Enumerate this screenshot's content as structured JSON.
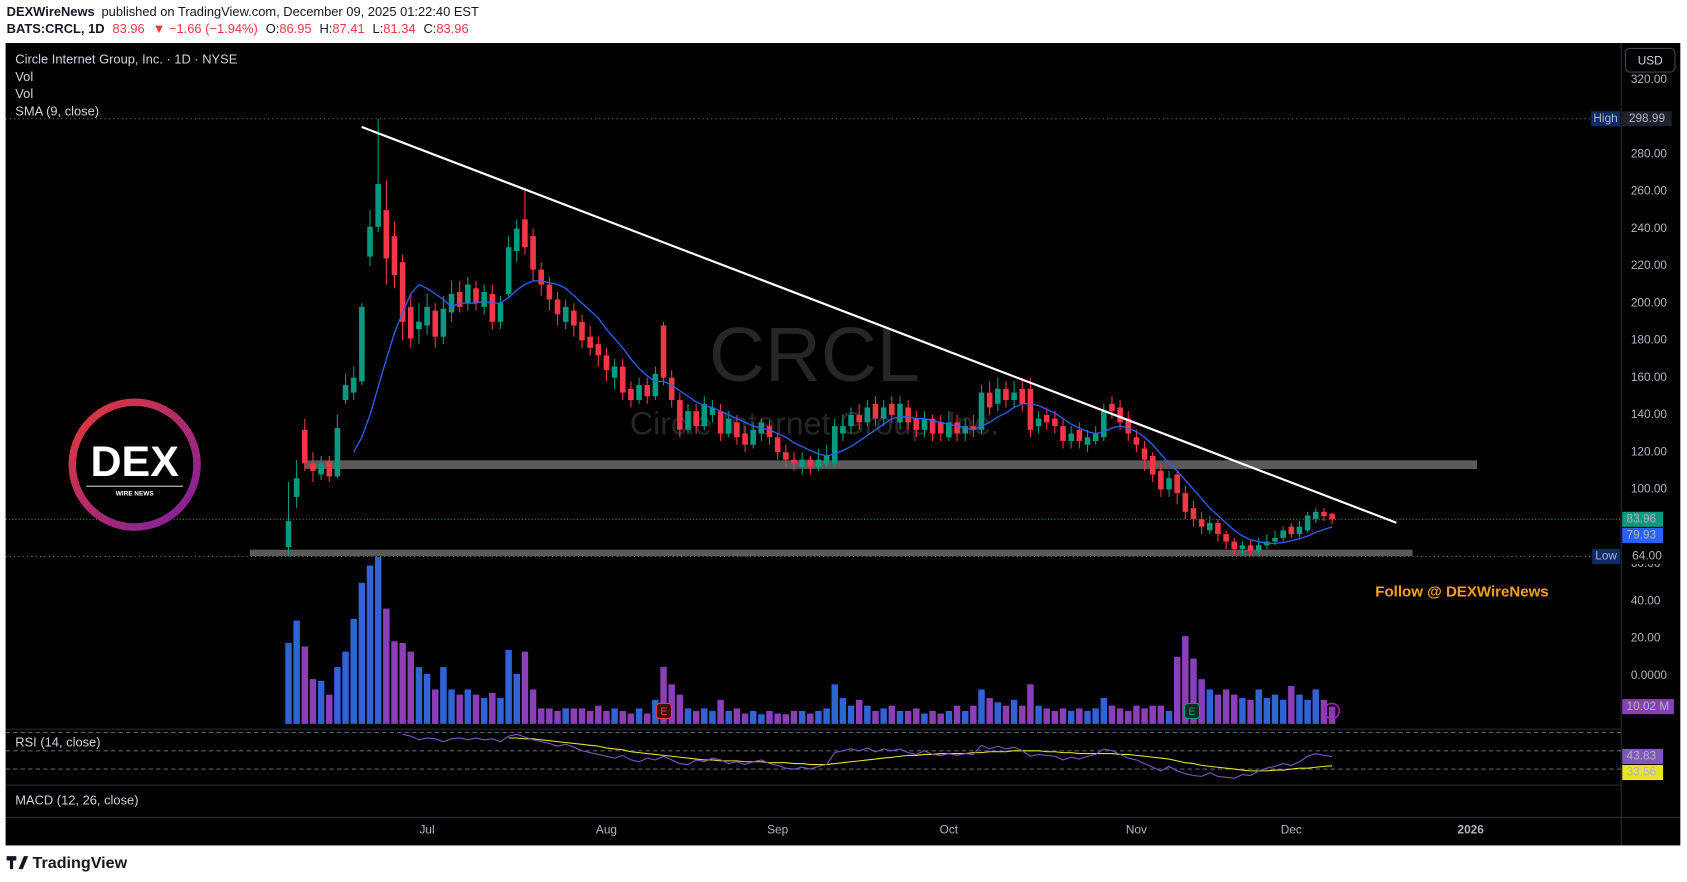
{
  "header": {
    "publisher": "DEXWireNews",
    "published": "published on TradingView.com, December 09, 2025 01:22:40 EST",
    "symbol": "BATS:CRCL, 1D",
    "change": "▼ −1.66 (−1.94%)",
    "o_label": "O:",
    "h_label": "H:",
    "l_label": "L:",
    "c_label": "C:"
  },
  "logo": {
    "text": "DEX",
    "subtext": "WIRE NEWS"
  },
  "annotation": "Follow @ DEXWireNews",
  "footer": "TradingView",
  "chart_data": {
    "type": "candlestick",
    "title": "Circle Internet Group, Inc. · 1D · NYSE",
    "volume_name": "Vol",
    "volume_name_2": "Vol",
    "sma_name": "SMA (9, close)",
    "rsi_name": "RSI (14, close)",
    "macd_name": "MACD (12, 26, close)",
    "watermark_symbol": "CRCL",
    "watermark_name": "Circle Internet Group, Inc.",
    "currency": "USD",
    "earnings_marker": "E",
    "categories": [
      null,
      null,
      null,
      null,
      null,
      null,
      null,
      null,
      null,
      null,
      null,
      null,
      null,
      null,
      null,
      null,
      null,
      "Jul",
      null,
      null,
      null,
      null,
      null,
      null,
      null,
      null,
      null,
      null,
      null,
      null,
      null,
      null,
      null,
      null,
      null,
      null,
      null,
      null,
      null,
      "Aug",
      null,
      null,
      null,
      null,
      null,
      null,
      null,
      null,
      null,
      null,
      null,
      null,
      null,
      null,
      null,
      null,
      null,
      null,
      null,
      null,
      "Sep",
      null,
      null,
      null,
      null,
      null,
      null,
      null,
      null,
      null,
      null,
      null,
      null,
      null,
      null,
      null,
      null,
      null,
      null,
      null,
      null,
      "Oct",
      null,
      null,
      null,
      null,
      null,
      null,
      null,
      null,
      null,
      null,
      null,
      null,
      null,
      null,
      null,
      null,
      null,
      null,
      null,
      null,
      null,
      null,
      "Nov",
      null,
      null,
      null,
      null,
      null,
      null,
      null,
      null,
      null,
      null,
      null,
      null,
      null,
      null,
      null,
      null,
      null,
      null,
      "Dec",
      null,
      null,
      null,
      null,
      null,
      null,
      null,
      null,
      null,
      null,
      null,
      null,
      null,
      null,
      null,
      null,
      null,
      null,
      null,
      null,
      null,
      "2026",
      null
    ],
    "ohlc": [
      [
        69,
        104,
        64,
        83
      ],
      [
        96,
        116,
        90,
        106
      ],
      [
        132,
        138,
        110,
        114
      ],
      [
        114,
        120,
        104,
        110
      ],
      [
        108,
        118,
        105,
        114
      ],
      [
        115,
        118,
        104,
        107
      ],
      [
        107,
        140,
        106,
        133
      ],
      [
        148,
        162,
        146,
        156
      ],
      [
        152,
        166,
        148,
        160
      ],
      [
        158,
        200,
        156,
        198
      ],
      [
        225,
        250,
        220,
        241
      ],
      [
        241,
        298.99,
        238,
        264
      ],
      [
        250,
        266,
        210,
        224
      ],
      [
        236,
        244,
        208,
        215
      ],
      [
        222,
        226,
        180,
        190
      ],
      [
        198,
        205,
        176,
        181
      ],
      [
        186,
        200,
        178,
        190
      ],
      [
        188,
        205,
        183,
        198
      ],
      [
        196,
        200,
        176,
        182
      ],
      [
        182,
        204,
        178,
        197
      ],
      [
        195,
        212,
        190,
        205
      ],
      [
        206,
        212,
        195,
        198
      ],
      [
        200,
        214,
        196,
        210
      ],
      [
        208,
        212,
        196,
        200
      ],
      [
        198,
        210,
        194,
        206
      ],
      [
        205,
        210,
        186,
        190
      ],
      [
        190,
        204,
        186,
        200
      ],
      [
        205,
        236,
        203,
        230
      ],
      [
        228,
        245,
        222,
        240
      ],
      [
        245,
        262,
        226,
        230
      ],
      [
        236,
        240,
        212,
        218
      ],
      [
        218,
        222,
        204,
        210
      ],
      [
        210,
        214,
        196,
        202
      ],
      [
        202,
        206,
        188,
        194
      ],
      [
        190,
        202,
        186,
        198
      ],
      [
        196,
        200,
        182,
        188
      ],
      [
        190,
        194,
        176,
        180
      ],
      [
        182,
        188,
        172,
        176
      ],
      [
        178,
        182,
        166,
        172
      ],
      [
        172,
        176,
        158,
        164
      ],
      [
        160,
        170,
        154,
        166
      ],
      [
        166,
        170,
        148,
        152
      ],
      [
        154,
        158,
        144,
        148
      ],
      [
        148,
        160,
        146,
        156
      ],
      [
        156,
        160,
        146,
        150
      ],
      [
        150,
        166,
        148,
        162
      ],
      [
        188,
        190,
        156,
        160
      ],
      [
        160,
        164,
        144,
        148
      ],
      [
        148,
        152,
        128,
        132
      ],
      [
        132,
        146,
        130,
        142
      ],
      [
        142,
        146,
        130,
        134
      ],
      [
        134,
        150,
        132,
        146
      ],
      [
        140,
        148,
        136,
        144
      ],
      [
        142,
        146,
        126,
        130
      ],
      [
        130,
        142,
        128,
        138
      ],
      [
        136,
        140,
        124,
        128
      ],
      [
        130,
        134,
        120,
        124
      ],
      [
        124,
        136,
        122,
        132
      ],
      [
        130,
        138,
        126,
        136
      ],
      [
        134,
        137,
        124,
        128
      ],
      [
        128,
        130,
        116,
        120
      ],
      [
        120,
        124,
        112,
        116
      ],
      [
        116,
        120,
        110,
        114
      ],
      [
        112,
        120,
        108,
        116
      ],
      [
        116,
        118,
        108,
        112
      ],
      [
        112,
        122,
        110,
        116
      ],
      [
        114,
        124,
        112,
        118
      ],
      [
        114,
        138,
        112,
        134
      ],
      [
        130,
        140,
        126,
        134
      ],
      [
        134,
        144,
        130,
        140
      ],
      [
        140,
        146,
        132,
        136
      ],
      [
        136,
        148,
        134,
        144
      ],
      [
        146,
        150,
        134,
        138
      ],
      [
        138,
        148,
        134,
        144
      ],
      [
        146,
        150,
        136,
        140
      ],
      [
        136,
        150,
        132,
        146
      ],
      [
        144,
        148,
        132,
        136
      ],
      [
        138,
        142,
        128,
        132
      ],
      [
        132,
        142,
        128,
        138
      ],
      [
        138,
        140,
        126,
        130
      ],
      [
        136,
        140,
        126,
        130
      ],
      [
        128,
        142,
        126,
        136
      ],
      [
        136,
        140,
        126,
        130
      ],
      [
        130,
        138,
        126,
        134
      ],
      [
        134,
        140,
        128,
        132
      ],
      [
        132,
        156,
        130,
        152
      ],
      [
        152,
        158,
        140,
        144
      ],
      [
        146,
        160,
        142,
        154
      ],
      [
        154,
        158,
        144,
        148
      ],
      [
        148,
        158,
        144,
        152
      ],
      [
        154,
        160,
        142,
        146
      ],
      [
        154,
        160,
        128,
        132
      ],
      [
        134,
        142,
        130,
        138
      ],
      [
        140,
        144,
        132,
        136
      ],
      [
        138,
        142,
        130,
        134
      ],
      [
        134,
        138,
        122,
        126
      ],
      [
        126,
        134,
        122,
        130
      ],
      [
        132,
        136,
        122,
        126
      ],
      [
        124,
        132,
        120,
        128
      ],
      [
        126,
        134,
        124,
        130
      ],
      [
        128,
        146,
        126,
        142
      ],
      [
        146,
        150,
        138,
        142
      ],
      [
        144,
        148,
        132,
        136
      ],
      [
        138,
        142,
        126,
        130
      ],
      [
        128,
        132,
        120,
        124
      ],
      [
        122,
        126,
        110,
        116
      ],
      [
        118,
        120,
        104,
        108
      ],
      [
        110,
        114,
        96,
        100
      ],
      [
        100,
        110,
        96,
        106
      ],
      [
        108,
        110,
        92,
        98
      ],
      [
        98,
        102,
        84,
        88
      ],
      [
        90,
        94,
        80,
        84
      ],
      [
        84,
        88,
        76,
        80
      ],
      [
        78,
        86,
        76,
        82
      ],
      [
        82,
        84,
        72,
        76
      ],
      [
        76,
        78,
        68,
        72
      ],
      [
        72,
        74,
        65,
        68
      ],
      [
        68,
        72,
        65,
        70
      ],
      [
        70,
        73,
        64.5,
        67
      ],
      [
        67,
        74,
        65,
        70
      ],
      [
        70,
        76,
        68,
        72
      ],
      [
        72,
        78,
        70,
        74
      ],
      [
        74,
        80,
        72,
        78
      ],
      [
        80,
        82,
        74,
        76
      ],
      [
        76,
        83,
        74,
        80
      ],
      [
        78,
        88,
        77,
        86
      ],
      [
        84,
        90,
        82,
        88
      ],
      [
        88,
        90,
        83,
        85.62
      ],
      [
        86.95,
        87.41,
        81.34,
        83.96
      ],
      null,
      null,
      null,
      null,
      null,
      null,
      null,
      null,
      null,
      null,
      null,
      null,
      null,
      null,
      null,
      null,
      null,
      null
    ],
    "volume": [
      47,
      60,
      45,
      26,
      25,
      17,
      33,
      42,
      61,
      82,
      92,
      97,
      67,
      48,
      47,
      42,
      33,
      29,
      20,
      33,
      20,
      17,
      20,
      17,
      15,
      18,
      15,
      43,
      29,
      42,
      20,
      9,
      9,
      7.5,
      9,
      9,
      9,
      7.5,
      10.6,
      7.5,
      9,
      7.5,
      6,
      9,
      6,
      14,
      33,
      23,
      17,
      9,
      7.5,
      9,
      7.5,
      14,
      7.5,
      9,
      6,
      7.5,
      5.6,
      7.5,
      6,
      5.6,
      7.5,
      7.5,
      6,
      7.5,
      9,
      23,
      15,
      10.6,
      14,
      10.6,
      7.5,
      9,
      10.6,
      7.5,
      7.5,
      9,
      6,
      7.5,
      6,
      7.5,
      10.6,
      7.5,
      10.6,
      20,
      15,
      12.5,
      10.6,
      14,
      10.6,
      23,
      10.6,
      9,
      7.5,
      9,
      7.5,
      9,
      7.5,
      9,
      15,
      10.6,
      9,
      7.5,
      10.6,
      9,
      10.6,
      10.6,
      7.5,
      39,
      51,
      38,
      26,
      20,
      17,
      20,
      17,
      15,
      14,
      20,
      15,
      17,
      14,
      22,
      17,
      14,
      20,
      14,
      10.02,
      null,
      null,
      null,
      null,
      null,
      null,
      null,
      null,
      null,
      null,
      null,
      null,
      null,
      null,
      null,
      null,
      null,
      null
    ],
    "volume_label": "10.02 M",
    "sma": [
      null,
      null,
      null,
      null,
      null,
      null,
      null,
      null,
      120,
      128,
      140,
      155,
      170,
      184,
      195,
      205,
      210,
      208,
      205,
      202,
      198,
      200,
      200,
      200,
      201,
      200,
      200,
      203,
      207,
      210,
      212,
      212,
      211,
      210,
      208,
      204,
      200,
      196,
      192,
      186,
      181,
      176,
      170,
      165,
      161,
      158,
      158,
      156,
      153,
      150,
      147,
      145,
      144,
      142,
      140,
      138,
      136,
      134,
      133,
      132,
      130,
      128,
      125,
      123,
      121,
      119,
      118,
      119,
      121,
      123,
      126,
      129,
      132,
      135,
      138,
      139,
      139,
      138,
      138,
      137,
      136,
      135,
      134,
      133,
      132,
      134,
      136,
      139,
      141,
      144,
      146,
      146,
      145,
      143,
      141,
      138,
      135,
      133,
      131,
      130,
      131,
      133,
      134,
      133,
      131,
      128,
      124,
      119,
      114,
      110,
      105,
      100,
      95,
      90,
      86,
      82,
      78,
      75,
      73,
      72,
      71,
      71,
      71.5,
      72.5,
      73.5,
      75,
      77,
      78.5,
      79.93,
      null,
      null,
      null,
      null,
      null,
      null,
      null,
      null,
      null,
      null,
      null,
      null,
      null,
      null,
      null,
      null,
      null,
      null
    ],
    "rsi": [
      null,
      null,
      null,
      null,
      null,
      null,
      null,
      null,
      null,
      null,
      null,
      null,
      null,
      null,
      68,
      66,
      62,
      64,
      63,
      60,
      63,
      64,
      62,
      64,
      62,
      63,
      60,
      66,
      68,
      65,
      62,
      60,
      58,
      55,
      57,
      54,
      50,
      48,
      46,
      44,
      42,
      45,
      40,
      38,
      42,
      40,
      44,
      40,
      36,
      35,
      40,
      38,
      42,
      40,
      36,
      38,
      35,
      38,
      40,
      36,
      34,
      31,
      30,
      32,
      30,
      33,
      35,
      48,
      50,
      52,
      50,
      53,
      49,
      52,
      50,
      52,
      48,
      46,
      50,
      46,
      45,
      47,
      45,
      47,
      46,
      56,
      52,
      55,
      52,
      54,
      50,
      44,
      46,
      45,
      44,
      40,
      43,
      41,
      44,
      46,
      52,
      50,
      46,
      42,
      40,
      36,
      32,
      28,
      33,
      28,
      25,
      23,
      22,
      26,
      22,
      21,
      20,
      24,
      23,
      28,
      31,
      33,
      36,
      34,
      38,
      44,
      47,
      45,
      43.83,
      null,
      null,
      null,
      null,
      null,
      null,
      null,
      null,
      null,
      null,
      null,
      null,
      null,
      null,
      null,
      null,
      null,
      null
    ],
    "rsi_ma": [
      null,
      null,
      null,
      null,
      null,
      null,
      null,
      null,
      null,
      null,
      null,
      null,
      null,
      null,
      null,
      null,
      null,
      null,
      null,
      null,
      null,
      null,
      null,
      null,
      null,
      null,
      null,
      64,
      64,
      63,
      63,
      62,
      61,
      60,
      59,
      58,
      57,
      56,
      55,
      53,
      52,
      51,
      49,
      48,
      47,
      46,
      45,
      44,
      43,
      42,
      41,
      40,
      40,
      39,
      39,
      39,
      38,
      38,
      38,
      37,
      37,
      37,
      36,
      36,
      35,
      35,
      35,
      36,
      37,
      38,
      39,
      40,
      41,
      42,
      43,
      44,
      45,
      45,
      46,
      46,
      47,
      47,
      47,
      47,
      48,
      48,
      49,
      49,
      49,
      50,
      50,
      50,
      50,
      49,
      49,
      48,
      48,
      47,
      47,
      47,
      47,
      47,
      46,
      46,
      45,
      44,
      43,
      42,
      41,
      39,
      37,
      36,
      34,
      33,
      32,
      31,
      30,
      29,
      28,
      28,
      28,
      29,
      29,
      30,
      31,
      31,
      32,
      33,
      33.56,
      null,
      null,
      null,
      null,
      null,
      null,
      null,
      null,
      null,
      null,
      null,
      null,
      null,
      null,
      null,
      null,
      null,
      null
    ],
    "ylim": [
      -27.6,
      338.5
    ],
    "yticks": [
      {
        "value": 320,
        "label": "320.00"
      },
      {
        "value": 280,
        "label": "280.00"
      },
      {
        "value": 260,
        "label": "260.00"
      },
      {
        "value": 240,
        "label": "240.00"
      },
      {
        "value": 220,
        "label": "220.00"
      },
      {
        "value": 200,
        "label": "200.00"
      },
      {
        "value": 180,
        "label": "180.00"
      },
      {
        "value": 160,
        "label": "160.00"
      },
      {
        "value": 140,
        "label": "140.00"
      },
      {
        "value": 120,
        "label": "120.00"
      },
      {
        "value": 100,
        "label": "100.00"
      },
      {
        "value": 60,
        "label": "60.00"
      },
      {
        "value": 40,
        "label": "40.00"
      },
      {
        "value": 20,
        "label": "20.00"
      },
      {
        "value": 0,
        "label": "0.0000"
      }
    ],
    "volume_ylim": [
      0,
      100
    ],
    "rsi_ylim": [
      12.4,
      73.5
    ],
    "rsi_levels": [
      70,
      50,
      30
    ],
    "high": 298.99,
    "high_label": "High",
    "low": {
      "value": 64,
      "label": "64.00"
    },
    "low_label": "Low",
    "grid": false,
    "up_color": "#089981",
    "down_color": "#f23645",
    "vol_up_color": "#2f63d6",
    "vol_down_color": "#8a3fb8",
    "sma_color": "#2962ff",
    "rsi_color": "#7e57c2",
    "rsi_ma_color": "#e8e22a"
  }
}
